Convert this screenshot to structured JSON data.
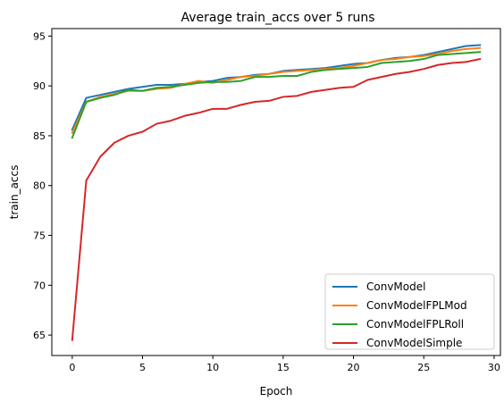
{
  "chart_data": {
    "type": "line",
    "title": "Average train_accs over 5 runs",
    "xlabel": "Epoch",
    "ylabel": "train_accs",
    "xlim": [
      -1.45,
      30.45
    ],
    "ylim": [
      62.95,
      95.75
    ],
    "xticks": [
      0,
      5,
      10,
      15,
      20,
      25,
      30
    ],
    "yticks": [
      65,
      70,
      75,
      80,
      85,
      90,
      95
    ],
    "grid": false,
    "legend_position": "lower-right",
    "x": [
      0,
      1,
      2,
      3,
      4,
      5,
      6,
      7,
      8,
      9,
      10,
      11,
      12,
      13,
      14,
      15,
      16,
      17,
      18,
      19,
      20,
      21,
      22,
      23,
      24,
      25,
      26,
      27,
      28,
      29
    ],
    "series": [
      {
        "name": "ConvModel",
        "color": "#1f77b4",
        "values": [
          85.6,
          88.8,
          89.1,
          89.4,
          89.7,
          89.9,
          90.1,
          90.1,
          90.2,
          90.4,
          90.5,
          90.8,
          90.9,
          91.1,
          91.2,
          91.5,
          91.6,
          91.7,
          91.8,
          92.0,
          92.2,
          92.3,
          92.6,
          92.8,
          92.9,
          93.1,
          93.4,
          93.7,
          94.0,
          94.1
        ]
      },
      {
        "name": "ConvModelFPLMod",
        "color": "#ff7f0e",
        "values": [
          85.3,
          88.4,
          88.9,
          89.2,
          89.5,
          89.5,
          89.7,
          89.8,
          90.2,
          90.5,
          90.3,
          90.6,
          90.9,
          91.0,
          91.2,
          91.4,
          91.5,
          91.6,
          91.7,
          91.8,
          92.0,
          92.3,
          92.6,
          92.7,
          92.9,
          93.0,
          93.2,
          93.5,
          93.7,
          93.8
        ]
      },
      {
        "name": "ConvModelFPLRoll",
        "color": "#2ca02c",
        "values": [
          84.8,
          88.4,
          88.8,
          89.1,
          89.6,
          89.5,
          89.8,
          89.9,
          90.1,
          90.3,
          90.4,
          90.4,
          90.5,
          90.9,
          90.9,
          91.0,
          91.0,
          91.4,
          91.6,
          91.7,
          91.8,
          91.9,
          92.3,
          92.4,
          92.5,
          92.7,
          93.1,
          93.2,
          93.3,
          93.4
        ]
      },
      {
        "name": "ConvModelSimple",
        "color": "#d62728",
        "values": [
          64.5,
          80.5,
          82.9,
          84.3,
          85.0,
          85.4,
          86.2,
          86.5,
          87.0,
          87.3,
          87.7,
          87.7,
          88.1,
          88.4,
          88.5,
          88.9,
          89.0,
          89.4,
          89.6,
          89.8,
          89.9,
          90.6,
          90.9,
          91.2,
          91.4,
          91.7,
          92.1,
          92.3,
          92.4,
          92.7
        ]
      }
    ]
  }
}
